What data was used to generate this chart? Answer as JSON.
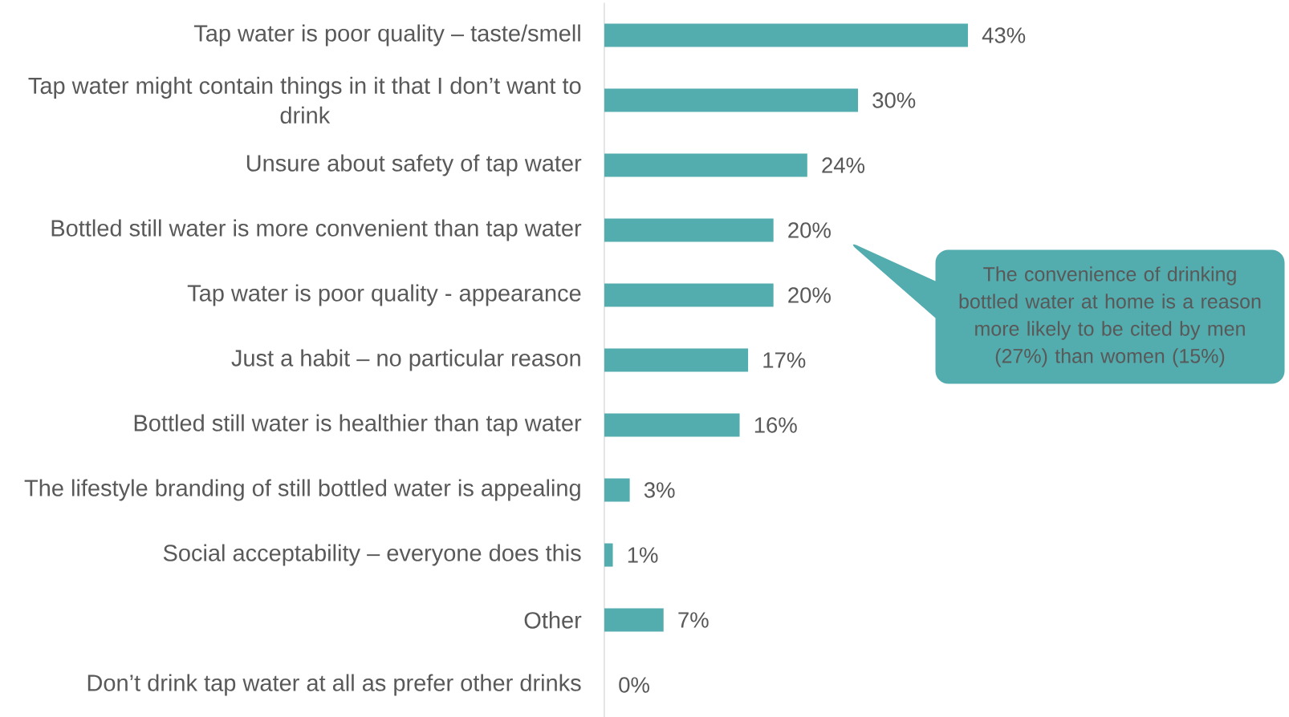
{
  "chart_data": {
    "type": "bar",
    "orientation": "horizontal",
    "categories": [
      "Tap water is poor quality – taste/smell",
      "Tap water might contain things in it that I don’t want to drink",
      "Unsure about safety of tap water",
      "Bottled still water is more convenient than tap water",
      "Tap water is poor quality - appearance",
      "Just a habit – no particular reason",
      "Bottled still water is healthier than tap water",
      "The lifestyle branding of still bottled water is appealing",
      "Social acceptability – everyone does this",
      "Other",
      "Don’t drink tap water at all as prefer other drinks"
    ],
    "values": [
      43,
      30,
      24,
      20,
      20,
      17,
      16,
      3,
      1,
      7,
      0
    ],
    "value_labels": [
      "43%",
      "30%",
      "24%",
      "20%",
      "20%",
      "17%",
      "16%",
      "3%",
      "1%",
      "7%",
      "0%"
    ],
    "color": "#53acae",
    "annotations": [
      "The convenience of drinking bottled water at home is a reason more likely to be cited by men (27%) than women (15%)"
    ]
  }
}
